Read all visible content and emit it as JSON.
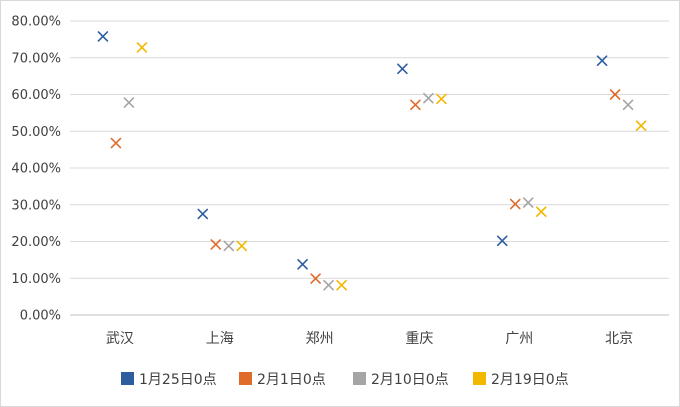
{
  "chart_data": {
    "type": "scatter",
    "categories": [
      "武汉",
      "上海",
      "郑州",
      "重庆",
      "广州",
      "北京"
    ],
    "series": [
      {
        "name": "1月25日0点",
        "color": "#2e5d9f",
        "values": [
          75.8,
          27.5,
          13.8,
          67.0,
          20.2,
          69.2
        ]
      },
      {
        "name": "2月1日0点",
        "color": "#e06c2b",
        "values": [
          46.8,
          19.2,
          9.9,
          57.2,
          30.2,
          60.0
        ]
      },
      {
        "name": "2月10日0点",
        "color": "#a5a5a5",
        "values": [
          57.8,
          18.8,
          8.1,
          59.0,
          30.6,
          57.2
        ]
      },
      {
        "name": "2月19日0点",
        "color": "#f2b800",
        "values": [
          72.8,
          18.8,
          8.1,
          58.8,
          28.1,
          51.5
        ]
      }
    ],
    "ylim": [
      0,
      80
    ],
    "yticks": [
      "0.00%",
      "10.00%",
      "20.00%",
      "30.00%",
      "40.00%",
      "50.00%",
      "60.00%",
      "70.00%",
      "80.00%"
    ],
    "grid": true,
    "legend_position": "bottom",
    "title": "",
    "xlabel": "",
    "ylabel": ""
  }
}
